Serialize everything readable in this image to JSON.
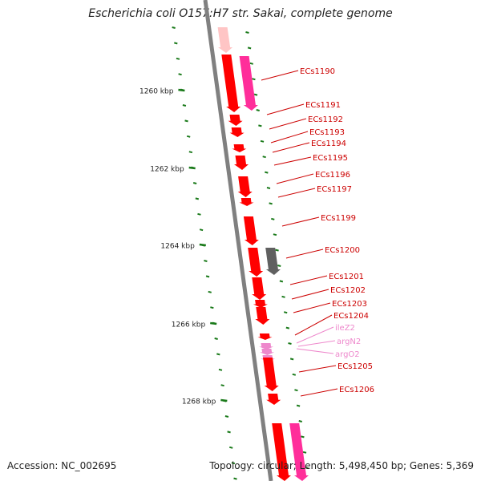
{
  "title": "Escherichia coli O157:H7 str. Sakai, complete genome",
  "accession_text": "Accession: NC_002695",
  "topology_text": "Topology: circular; Length: 5,498,450 bp; Genes: 5,369",
  "colors": {
    "backbone": "#808080",
    "ticks": "#1a7a1a",
    "gene": "#ff0000",
    "gene_dark": "#c80000",
    "gene_pink": "#ff2e9a",
    "other": "#606060",
    "trna": "#ee88cc",
    "label": "#cc0000",
    "trna_label": "#ee88cc"
  },
  "kbp_labels": [
    "1260 kbp",
    "1262 kbp",
    "1264 kbp",
    "1266 kbp",
    "1268 kbp"
  ],
  "gene_labels": [
    {
      "text": "ECs1190",
      "type": "gene"
    },
    {
      "text": "ECs1191",
      "type": "gene"
    },
    {
      "text": "ECs1192",
      "type": "gene"
    },
    {
      "text": "ECs1193",
      "type": "gene"
    },
    {
      "text": "ECs1194",
      "type": "gene"
    },
    {
      "text": "ECs1195",
      "type": "gene"
    },
    {
      "text": "ECs1196",
      "type": "gene"
    },
    {
      "text": "ECs1197",
      "type": "gene"
    },
    {
      "text": "ECs1199",
      "type": "gene"
    },
    {
      "text": "ECs1200",
      "type": "gene"
    },
    {
      "text": "ECs1201",
      "type": "gene"
    },
    {
      "text": "ECs1202",
      "type": "gene"
    },
    {
      "text": "ECs1203",
      "type": "gene"
    },
    {
      "text": "ECs1204",
      "type": "gene"
    },
    {
      "text": "ileZ2",
      "type": "trna"
    },
    {
      "text": "argN2",
      "type": "trna"
    },
    {
      "text": "argO2",
      "type": "trna"
    },
    {
      "text": "ECs1205",
      "type": "gene"
    },
    {
      "text": "ECs1206",
      "type": "gene"
    }
  ]
}
